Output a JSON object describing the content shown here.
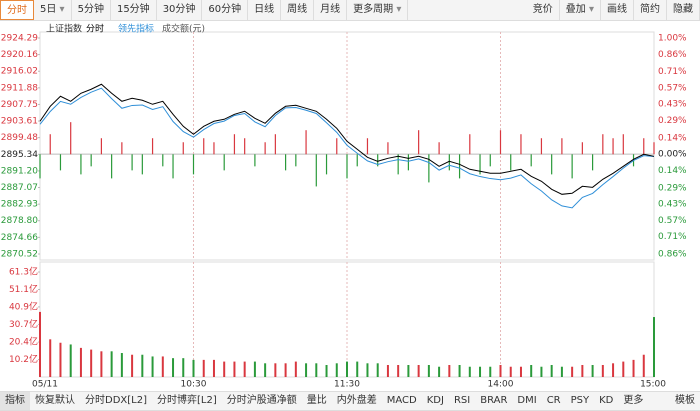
{
  "toolbar": {
    "left": [
      {
        "label": "分时",
        "active": true
      },
      {
        "label": "5日",
        "dropdown": true
      },
      {
        "label": "5分钟"
      },
      {
        "label": "15分钟"
      },
      {
        "label": "30分钟"
      },
      {
        "label": "60分钟"
      },
      {
        "label": "日线"
      },
      {
        "label": "周线"
      },
      {
        "label": "月线"
      },
      {
        "label": "更多周期",
        "dropdown": true
      }
    ],
    "right": [
      {
        "label": "竞价"
      },
      {
        "label": "叠加",
        "dropdown": true
      },
      {
        "label": "画线"
      },
      {
        "label": "简约"
      },
      {
        "label": "隐藏"
      }
    ]
  },
  "bottom_tabs": {
    "items": [
      "指标",
      "恢复默认",
      "分时DDX[L2]",
      "分时博弈[L2]",
      "分时沪股通净额",
      "量比",
      "内外盘差",
      "MACD",
      "KDJ",
      "RSI",
      "BRAR",
      "DMI",
      "CR",
      "PSY",
      "KD",
      "更多"
    ],
    "right": "模板"
  },
  "chart_data": {
    "type": "line",
    "title": "上证指数",
    "x": [
      0,
      4,
      8,
      12,
      16,
      20,
      24,
      28,
      32,
      36,
      40,
      44,
      48,
      52,
      56,
      60,
      64,
      68,
      72,
      76,
      80,
      84,
      88,
      92,
      96,
      100,
      104,
      108,
      112,
      116,
      120,
      124,
      128,
      132,
      136,
      140,
      144,
      148,
      152,
      156,
      160,
      164,
      168,
      172,
      176,
      180,
      184,
      188,
      192,
      196,
      200,
      204,
      208,
      212,
      216,
      220,
      224,
      228,
      232,
      236,
      240
    ],
    "xlim": [
      0,
      240
    ],
    "xticks": [
      {
        "value": 0,
        "label": "05/11"
      },
      {
        "value": 60,
        "label": "10:30"
      },
      {
        "value": 120,
        "label": "11:30"
      },
      {
        "value": 180,
        "label": "14:00"
      },
      {
        "value": 240,
        "label": "15:00"
      }
    ],
    "series": [
      {
        "name": "分时",
        "color": "#000000",
        "values": [
          2903.56,
          2907.29,
          2909.78,
          2908.54,
          2910.53,
          2911.53,
          2912.77,
          2910.53,
          2908.54,
          2909.28,
          2908.79,
          2907.79,
          2908.54,
          2905.3,
          2902.31,
          2900.32,
          2902.31,
          2903.56,
          2904.06,
          2905.3,
          2906.05,
          2904.3,
          2903.06,
          2905.55,
          2907.29,
          2907.54,
          2906.79,
          2906.05,
          2904.06,
          2901.81,
          2898.58,
          2896.59,
          2894.59,
          2893.6,
          2894.34,
          2894.84,
          2894.34,
          2894.84,
          2894.1,
          2892.35,
          2893.6,
          2892.85,
          2891.61,
          2891.11,
          2890.61,
          2890.61,
          2891.11,
          2891.61,
          2889.86,
          2888.62,
          2886.63,
          2885.38,
          2885.63,
          2887.37,
          2887.12,
          2889.12,
          2890.61,
          2892.35,
          2894.1,
          2895.34,
          2894.84
        ]
      },
      {
        "name": "领先指标",
        "color": "#2f8fd8",
        "values": [
          2902.8,
          2906.0,
          2908.5,
          2907.8,
          2909.5,
          2910.8,
          2911.8,
          2909.2,
          2906.8,
          2907.5,
          2907.6,
          2906.5,
          2907.2,
          2903.5,
          2901.0,
          2899.6,
          2901.5,
          2903.0,
          2903.6,
          2905.0,
          2905.5,
          2903.4,
          2902.2,
          2905.0,
          2906.9,
          2907.0,
          2906.3,
          2905.5,
          2903.2,
          2900.8,
          2897.6,
          2895.6,
          2893.7,
          2892.8,
          2893.5,
          2894.0,
          2893.6,
          2894.2,
          2893.3,
          2891.4,
          2892.6,
          2891.9,
          2890.5,
          2889.8,
          2889.3,
          2889.0,
          2889.4,
          2890.2,
          2888.0,
          2886.2,
          2884.0,
          2882.5,
          2882.0,
          2884.6,
          2885.6,
          2887.8,
          2889.8,
          2891.9,
          2893.8,
          2895.0,
          2894.8
        ]
      }
    ],
    "ylim": [
      2870.52,
      2924.29
    ],
    "yticks": [
      2924.29,
      2920.16,
      2916.02,
      2911.88,
      2907.75,
      2903.61,
      2899.48,
      2895.34,
      {
        "value": 2891.2,
        "label": "2891.20"
      },
      2887.07,
      2882.93,
      {
        "value": 2878.8,
        "label": "2878.80"
      },
      2874.66,
      2870.52
    ],
    "y2lim": [
      -0.86,
      1.0
    ],
    "y2ticks": [
      {
        "value": 1.0,
        "label": "1.00%"
      },
      {
        "value": 0.86,
        "label": "0.86%"
      },
      {
        "value": 0.71,
        "label": "0.71%"
      },
      {
        "value": 0.57,
        "label": "0.57%"
      },
      {
        "value": 0.43,
        "label": "0.43%"
      },
      {
        "value": 0.29,
        "label": "0.29%"
      },
      {
        "value": 0.14,
        "label": "0.14%"
      },
      {
        "value": 0.0,
        "label": "0.00%"
      },
      {
        "value": -0.14,
        "label": "0.14%"
      },
      {
        "value": -0.29,
        "label": "0.29%"
      },
      {
        "value": -0.43,
        "label": "0.43%"
      },
      {
        "value": -0.57,
        "label": "0.57%"
      },
      {
        "value": -0.71,
        "label": "0.71%"
      },
      {
        "value": -0.86,
        "label": "0.86%"
      }
    ],
    "up_color": "#d9373f",
    "down_color": "#2a9a3a",
    "bars": {
      "values": [
        -6,
        5,
        -4,
        8,
        -5,
        -3,
        4,
        -6,
        3,
        -4,
        -5,
        4,
        -3,
        -6,
        3,
        -5,
        4,
        3,
        -4,
        5,
        4,
        -3,
        3,
        5,
        -4,
        -3,
        6,
        -8,
        -5,
        4,
        -6,
        -3,
        4,
        -3,
        3,
        -5,
        -4,
        6,
        -7,
        3,
        -4,
        -6,
        5,
        -5,
        -3,
        6,
        -4,
        5,
        -3,
        4,
        -5,
        4,
        -6,
        3,
        -4,
        5,
        4,
        5,
        -3,
        4,
        3
      ]
    },
    "volume": {
      "label": "成交额(元)",
      "ylim": [
        0,
        61.3
      ],
      "yticks": [
        {
          "value": 61.3,
          "label": "61.3亿"
        },
        {
          "value": 51.1,
          "label": "51.1亿"
        },
        {
          "value": 40.9,
          "label": "40.9亿"
        },
        {
          "value": 30.7,
          "label": "30.7亿"
        },
        {
          "value": 20.4,
          "label": "20.4亿"
        },
        {
          "value": 10.2,
          "label": "10.2亿"
        }
      ],
      "values": [
        38,
        22,
        20,
        19,
        17,
        16,
        15,
        15,
        14,
        13,
        13,
        12,
        12,
        11,
        11,
        10,
        10,
        10,
        9,
        9,
        9,
        9,
        8,
        8,
        8,
        9,
        8,
        8,
        7,
        8,
        9,
        9,
        8,
        8,
        7,
        7,
        7,
        7,
        7,
        6,
        7,
        7,
        6,
        6,
        6,
        7,
        6,
        6,
        7,
        6,
        7,
        6,
        6,
        7,
        7,
        7,
        8,
        9,
        10,
        13,
        35
      ]
    }
  }
}
